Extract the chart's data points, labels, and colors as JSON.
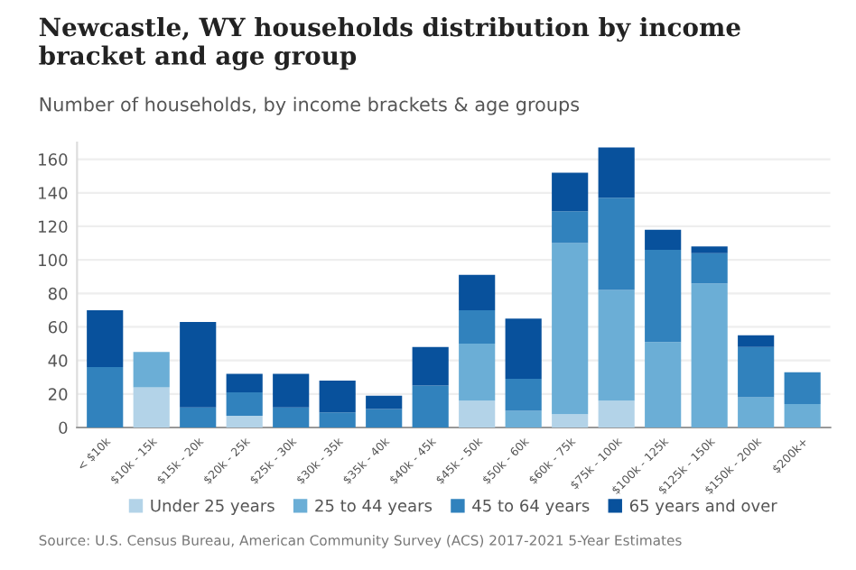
{
  "chart_data": {
    "type": "bar",
    "stacked": true,
    "title": "Newcastle, WY households distribution by income bracket and age group",
    "subtitle": "Number of households, by income brackets & age groups",
    "categories": [
      "< $10k",
      "$10k - 15k",
      "$15k - 20k",
      "$20k - 25k",
      "$25k - 30k",
      "$30k - 35k",
      "$35k - 40k",
      "$40k - 45k",
      "$45k - 50k",
      "$50k - 60k",
      "$60k - 75k",
      "$75k - 100k",
      "$100k - 125k",
      "$125k - 150k",
      "$150k - 200k",
      "$200k+"
    ],
    "series": [
      {
        "name": "Under 25 years",
        "color": "#b3d3e8",
        "values": [
          0,
          24,
          0,
          7,
          0,
          0,
          0,
          null,
          16,
          0,
          8,
          16,
          0,
          0,
          0,
          0
        ]
      },
      {
        "name": "25 to 44 years",
        "color": "#6baed6",
        "values": [
          0,
          21,
          0,
          0,
          0,
          0,
          0,
          0,
          34,
          10,
          102,
          66,
          51,
          86,
          18,
          14
        ]
      },
      {
        "name": "45 to 64 years",
        "color": "#3182bd",
        "values": [
          36,
          0,
          12,
          14,
          12,
          9,
          11,
          25,
          20,
          19,
          19,
          55,
          55,
          18,
          30,
          19
        ]
      },
      {
        "name": "65 years and over",
        "color": "#08519c",
        "values": [
          34,
          0,
          51,
          11,
          20,
          19,
          8,
          23,
          21,
          36,
          23,
          30,
          12,
          4,
          7,
          0
        ]
      }
    ],
    "ylim": [
      0,
      170
    ],
    "yticks": [
      0,
      20,
      40,
      60,
      80,
      100,
      120,
      140,
      160
    ],
    "grid": "y",
    "legend": "bottom",
    "annotations": [
      "Source: U.S. Census Bureau, American Community Survey (ACS) 2017-2021 5-Year Estimates"
    ]
  }
}
